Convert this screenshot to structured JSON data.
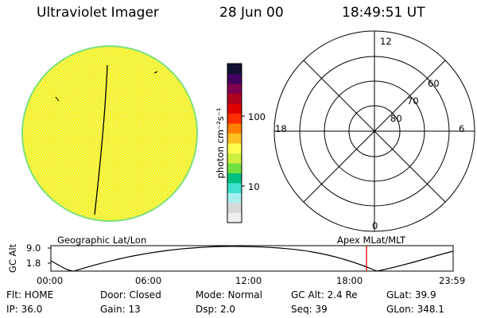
{
  "header": {
    "instrument": "Ultraviolet Imager",
    "date": "28 Jun 00",
    "time": "18:49:51 UT"
  },
  "colorbar": {
    "label": "photon cm⁻²s⁻¹",
    "ticks": [
      {
        "label": "100",
        "value": 100
      },
      {
        "label": "10",
        "value": 10
      }
    ],
    "colors": [
      "#f0f0f0",
      "#d8d8d8",
      "#a8f0f0",
      "#40e0d0",
      "#00c080",
      "#70e040",
      "#d0f040",
      "#ffff50",
      "#ffc020",
      "#ff8000",
      "#ff3000",
      "#e00000",
      "#b00020",
      "#800050",
      "#400060",
      "#101030"
    ]
  },
  "image_panel": {
    "label": "Geographic Lat/Lon",
    "fill_color": "#f2f230",
    "speckle_color": "#ffffc0",
    "edge_color": "#7ee07e"
  },
  "polar_grid": {
    "label": "Apex MLat/MLT",
    "hour_labels": {
      "top": "12",
      "left": "18",
      "right": "6",
      "bottom": "0"
    },
    "lat_labels": [
      "60",
      "70",
      "80"
    ]
  },
  "altitude_plot": {
    "axis_label": "GC Alt",
    "y_ticks": [
      "9.0",
      "1.8"
    ],
    "x_ticks": [
      "00:00",
      "06:00",
      "12:00",
      "18:00",
      "23:59"
    ],
    "marker_color": "#e00000",
    "marker_time_hours": 18.83
  },
  "status": {
    "row1": [
      {
        "key": "flt",
        "text": "Flt: HOME"
      },
      {
        "key": "door",
        "text": "Door: Closed"
      },
      {
        "key": "mode",
        "text": "Mode: Normal"
      },
      {
        "key": "gcalt",
        "text": "GC Alt: 2.4 Re"
      },
      {
        "key": "glat",
        "text": "GLat:  39.9"
      }
    ],
    "row2": [
      {
        "key": "ip",
        "text": "IP: 36.0"
      },
      {
        "key": "gain",
        "text": "Gain: 13"
      },
      {
        "key": "dsp",
        "text": "Dsp:     2.0"
      },
      {
        "key": "seq",
        "text": "Seq: 39"
      },
      {
        "key": "glon",
        "text": "GLon: 348.1"
      }
    ]
  }
}
